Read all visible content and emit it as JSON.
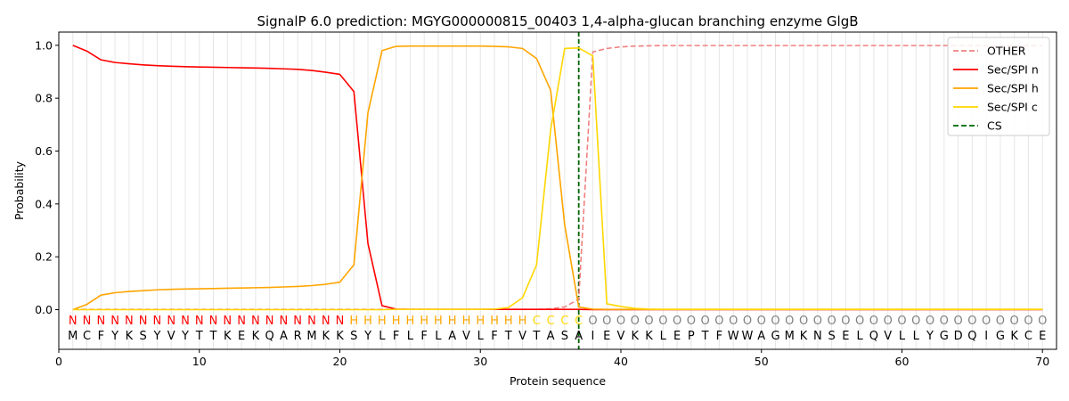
{
  "chart_data": {
    "type": "line",
    "title": "SignalP 6.0 prediction: MGYG000000815_00403 1,4-alpha-glucan branching enzyme GlgB",
    "xlabel": "Protein sequence",
    "ylabel": "Probability",
    "xlim": [
      0,
      71
    ],
    "ylim": [
      -0.15,
      1.05
    ],
    "xticks": [
      0,
      10,
      20,
      30,
      40,
      50,
      60,
      70
    ],
    "yticks": [
      0.0,
      0.2,
      0.4,
      0.6,
      0.8,
      1.0
    ],
    "ytick_labels": [
      "0.0",
      "0.2",
      "0.4",
      "0.6",
      "0.8",
      "1.0"
    ],
    "grid": "vertical lines at each residue",
    "legend_position": "top-right",
    "sequence": [
      "M",
      "C",
      "F",
      "Y",
      "K",
      "S",
      "Y",
      "V",
      "Y",
      "T",
      "T",
      "K",
      "E",
      "K",
      "Q",
      "A",
      "R",
      "M",
      "K",
      "K",
      "S",
      "Y",
      "L",
      "F",
      "L",
      "F",
      "L",
      "A",
      "V",
      "L",
      "F",
      "T",
      "V",
      "T",
      "A",
      "S",
      "A",
      "I",
      "E",
      "V",
      "K",
      "K",
      "L",
      "E",
      "P",
      "T",
      "F",
      "W",
      "W",
      "A",
      "G",
      "M",
      "K",
      "N",
      "S",
      "E",
      "L",
      "Q",
      "V",
      "L",
      "L",
      "Y",
      "G",
      "D",
      "Q",
      "I",
      "G",
      "K",
      "C",
      "E"
    ],
    "annotation": [
      "N",
      "N",
      "N",
      "N",
      "N",
      "N",
      "N",
      "N",
      "N",
      "N",
      "N",
      "N",
      "N",
      "N",
      "N",
      "N",
      "N",
      "N",
      "N",
      "N",
      "H",
      "H",
      "H",
      "H",
      "H",
      "H",
      "H",
      "H",
      "H",
      "H",
      "H",
      "H",
      "H",
      "C",
      "C",
      "C",
      "C",
      "O",
      "O",
      "O",
      "O",
      "O",
      "O",
      "O",
      "O",
      "O",
      "O",
      "O",
      "O",
      "O",
      "O",
      "O",
      "O",
      "O",
      "O",
      "O",
      "O",
      "O",
      "O",
      "O",
      "O",
      "O",
      "O",
      "O",
      "O",
      "O",
      "O",
      "O",
      "O",
      "O"
    ],
    "annotation_colors": {
      "N": "#ff0000",
      "H": "#ffa500",
      "C": "#ffd700",
      "O": "#808080"
    },
    "cleavage_site": 37,
    "series": [
      {
        "name": "OTHER",
        "color": "#f08080",
        "dash": "dashed",
        "values": [
          0.001,
          0.001,
          0.001,
          0.001,
          0.001,
          0.001,
          0.001,
          0.001,
          0.001,
          0.001,
          0.001,
          0.001,
          0.001,
          0.001,
          0.001,
          0.001,
          0.001,
          0.001,
          0.001,
          0.001,
          0.001,
          0.001,
          0.001,
          0.001,
          0.001,
          0.001,
          0.001,
          0.001,
          0.001,
          0.001,
          0.001,
          0.001,
          0.001,
          0.001,
          0.003,
          0.01,
          0.04,
          0.975,
          0.988,
          0.994,
          0.997,
          0.998,
          0.999,
          0.999,
          0.999,
          0.999,
          0.999,
          0.999,
          0.999,
          0.999,
          0.999,
          0.999,
          0.999,
          0.999,
          0.999,
          0.999,
          0.999,
          0.999,
          0.999,
          0.999,
          0.999,
          0.999,
          0.999,
          0.999,
          0.999,
          0.999,
          0.999,
          0.999,
          0.999,
          0.999
        ]
      },
      {
        "name": "Sec/SPI n",
        "color": "#ff0000",
        "dash": "solid",
        "values": [
          1.0,
          0.978,
          0.945,
          0.935,
          0.93,
          0.926,
          0.923,
          0.921,
          0.919,
          0.918,
          0.917,
          0.916,
          0.915,
          0.914,
          0.913,
          0.911,
          0.909,
          0.905,
          0.898,
          0.89,
          0.825,
          0.25,
          0.015,
          0.002,
          0.001,
          0.001,
          0.001,
          0.001,
          0.001,
          0.001,
          0.001,
          0.001,
          0.001,
          0.001,
          0.001,
          0.001,
          0.001,
          0.0,
          0.0,
          0.0,
          0.0,
          0.0,
          0.0,
          0.0,
          0.0,
          0.0,
          0.0,
          0.0,
          0.0,
          0.0,
          0.0,
          0.0,
          0.0,
          0.0,
          0.0,
          0.0,
          0.0,
          0.0,
          0.0,
          0.0,
          0.0,
          0.0,
          0.0,
          0.0,
          0.0,
          0.0,
          0.0,
          0.0,
          0.0,
          0.0
        ]
      },
      {
        "name": "Sec/SPI h",
        "color": "#ffa500",
        "dash": "solid",
        "values": [
          0.0,
          0.02,
          0.055,
          0.064,
          0.069,
          0.072,
          0.075,
          0.077,
          0.078,
          0.079,
          0.08,
          0.081,
          0.082,
          0.083,
          0.084,
          0.086,
          0.088,
          0.091,
          0.096,
          0.104,
          0.17,
          0.745,
          0.98,
          0.996,
          0.997,
          0.997,
          0.997,
          0.997,
          0.997,
          0.997,
          0.996,
          0.994,
          0.988,
          0.95,
          0.83,
          0.32,
          0.01,
          0.002,
          0.001,
          0.001,
          0.001,
          0.001,
          0.001,
          0.001,
          0.001,
          0.001,
          0.001,
          0.001,
          0.001,
          0.001,
          0.001,
          0.001,
          0.001,
          0.001,
          0.001,
          0.001,
          0.001,
          0.001,
          0.001,
          0.001,
          0.001,
          0.001,
          0.001,
          0.001,
          0.001,
          0.001,
          0.001,
          0.001,
          0.001,
          0.001
        ]
      },
      {
        "name": "Sec/SPI c",
        "color": "#ffd700",
        "dash": "solid",
        "values": [
          0.0,
          0.0,
          0.0,
          0.0,
          0.0,
          0.0,
          0.0,
          0.0,
          0.0,
          0.0,
          0.0,
          0.0,
          0.0,
          0.0,
          0.0,
          0.0,
          0.0,
          0.0,
          0.0,
          0.0,
          0.0,
          0.0,
          0.0,
          0.001,
          0.001,
          0.001,
          0.001,
          0.001,
          0.001,
          0.001,
          0.002,
          0.008,
          0.045,
          0.17,
          0.68,
          0.988,
          0.99,
          0.96,
          0.022,
          0.012,
          0.005,
          0.002,
          0.001,
          0.001,
          0.001,
          0.001,
          0.001,
          0.001,
          0.001,
          0.001,
          0.001,
          0.001,
          0.001,
          0.001,
          0.001,
          0.001,
          0.001,
          0.001,
          0.001,
          0.001,
          0.001,
          0.001,
          0.001,
          0.001,
          0.001,
          0.001,
          0.001,
          0.001,
          0.001,
          0.001
        ]
      }
    ],
    "legend": [
      {
        "label": "OTHER",
        "color": "#f08080",
        "dash": "dashed"
      },
      {
        "label": "Sec/SPI n",
        "color": "#ff0000",
        "dash": "solid"
      },
      {
        "label": "Sec/SPI h",
        "color": "#ffa500",
        "dash": "solid"
      },
      {
        "label": "Sec/SPI c",
        "color": "#ffd700",
        "dash": "solid"
      },
      {
        "label": "CS",
        "color": "#006400",
        "dash": "dashed"
      }
    ]
  }
}
